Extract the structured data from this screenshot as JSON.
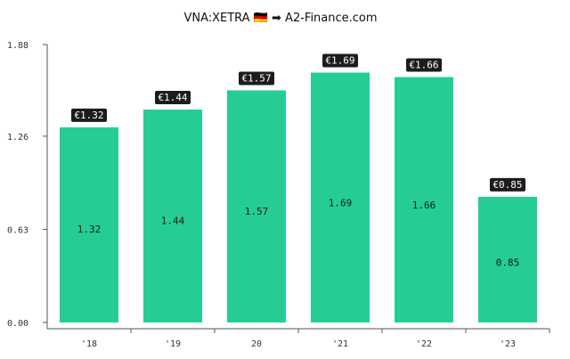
{
  "chart_data": {
    "type": "bar",
    "title": "VNA:XETRA 🇩🇪 ➡ A2-Finance.com",
    "categories": [
      "'18",
      "'19",
      "20",
      "'21",
      "'22",
      "'23"
    ],
    "values": [
      1.32,
      1.44,
      1.57,
      1.69,
      1.66,
      0.85
    ],
    "bar_labels": [
      "1.32",
      "1.44",
      "1.57",
      "1.69",
      "1.66",
      "0.85"
    ],
    "badge_labels": [
      "€1.32",
      "€1.44",
      "€1.57",
      "€1.69",
      "€1.66",
      "€0.85"
    ],
    "y_ticks": [
      0.0,
      0.63,
      1.26,
      1.88
    ],
    "y_tick_labels": [
      "0.00",
      "0.63",
      "1.26",
      "1.88"
    ],
    "ylim": [
      0,
      1.88
    ],
    "xlabel": "",
    "ylabel": "",
    "grid": false,
    "colors": {
      "bar": "#26cc96",
      "badge": "#1c1c1c",
      "axis": "#555555"
    }
  }
}
